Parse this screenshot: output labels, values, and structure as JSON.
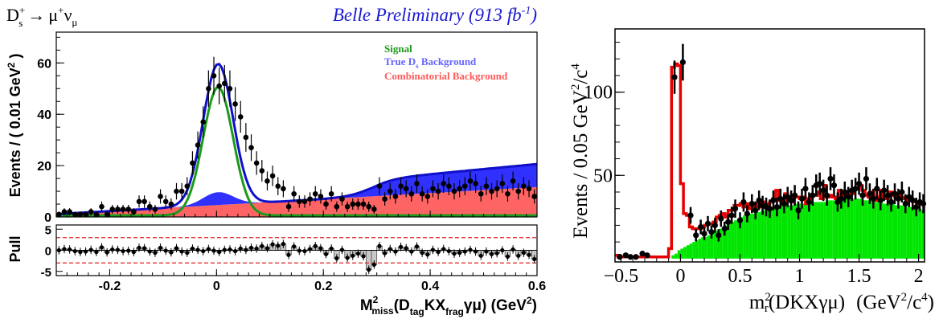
{
  "chart_data": [
    {
      "type": "scatter",
      "panel": "left-fit",
      "decay_label": {
        "base": "D",
        "sup": "+",
        "sub": "s",
        "arrow": "→",
        "mu": "μ",
        "mu_sup": "+",
        "nu": "ν",
        "nu_sub": "μ"
      },
      "experiment_label": "Belle Preliminary (913 fb",
      "experiment_label_sup": "-1",
      "experiment_label_end": ")",
      "ylabel": "Events / ( 0.01 GeV",
      "ylabel_sup": "2",
      "ylabel_end": " )",
      "xlabel": {
        "base": "M",
        "sup": "2",
        "sub": "miss",
        "mid": "(D",
        "tag": "tag",
        "mid2": "KX",
        "frag": "frag",
        "end": "γμ) (GeV",
        "unit_sup": "2",
        "close": ")"
      },
      "xlim": [
        -0.3,
        0.6
      ],
      "ylim": [
        0,
        72
      ],
      "x_ticks": [
        -0.2,
        0,
        0.2,
        0.4,
        0.6
      ],
      "x_tick_labels": [
        "-0.2",
        "0",
        "0.2",
        "0.4",
        "0.6"
      ],
      "y_ticks": [
        0,
        20,
        40,
        60
      ],
      "y_tick_labels": [
        "0",
        "20",
        "40",
        "60"
      ],
      "legend": [
        {
          "name": "Signal",
          "color": "#1a9a1a"
        },
        {
          "name": "True D",
          "sub": "s",
          "rest": " Background",
          "color": "#6464ff"
        },
        {
          "name": "Combinatorial Background",
          "color": "#ff5a5a"
        }
      ],
      "legend_position": "top-right",
      "colors": {
        "signal": "#1a9a1a",
        "true_ds_fill": "#3030ff",
        "comb_fill": "#ff6464",
        "total": "#1010c8",
        "points": "#000000"
      },
      "x": [
        -0.295,
        -0.285,
        -0.275,
        -0.265,
        -0.255,
        -0.245,
        -0.235,
        -0.225,
        -0.215,
        -0.205,
        -0.195,
        -0.185,
        -0.175,
        -0.165,
        -0.155,
        -0.145,
        -0.135,
        -0.125,
        -0.115,
        -0.105,
        -0.095,
        -0.085,
        -0.075,
        -0.065,
        -0.055,
        -0.045,
        -0.035,
        -0.025,
        -0.015,
        -0.005,
        0.005,
        0.015,
        0.025,
        0.035,
        0.045,
        0.055,
        0.065,
        0.075,
        0.085,
        0.095,
        0.105,
        0.115,
        0.125,
        0.135,
        0.145,
        0.155,
        0.165,
        0.175,
        0.185,
        0.195,
        0.205,
        0.215,
        0.225,
        0.235,
        0.245,
        0.255,
        0.265,
        0.275,
        0.285,
        0.295,
        0.305,
        0.315,
        0.325,
        0.335,
        0.345,
        0.355,
        0.365,
        0.375,
        0.385,
        0.395,
        0.405,
        0.415,
        0.425,
        0.435,
        0.445,
        0.455,
        0.465,
        0.475,
        0.485,
        0.495,
        0.505,
        0.515,
        0.525,
        0.535,
        0.545,
        0.555,
        0.565,
        0.575,
        0.585,
        0.595
      ],
      "y": [
        1,
        2,
        2,
        1,
        1,
        1,
        2,
        1,
        4,
        1,
        3,
        3,
        3,
        3,
        2,
        6,
        6,
        4,
        3,
        8,
        6,
        5,
        10,
        10,
        12,
        21,
        28,
        37,
        50,
        55,
        51,
        52,
        50,
        44,
        39,
        31,
        27,
        21,
        18,
        14,
        16,
        12,
        11,
        4,
        9,
        6,
        6,
        7,
        9,
        8,
        5,
        9,
        4,
        7,
        4,
        5,
        5,
        5,
        4,
        3,
        12,
        7,
        10,
        8,
        12,
        11,
        9,
        13,
        9,
        8,
        11,
        10,
        13,
        12,
        10,
        11,
        12,
        14,
        13,
        9,
        12,
        10,
        11,
        13,
        9,
        14,
        10,
        12,
        11,
        8
      ],
      "y_err": [
        1,
        1.4,
        1.4,
        1,
        1,
        1,
        1.4,
        1,
        2,
        1,
        1.7,
        1.7,
        1.7,
        1.7,
        1.4,
        2.4,
        2.4,
        2,
        1.7,
        2.8,
        2.4,
        2.2,
        3.2,
        3.2,
        3.5,
        4.6,
        5.3,
        6.1,
        7.1,
        7.4,
        7.1,
        7.2,
        7.1,
        6.6,
        6.2,
        5.6,
        5.2,
        4.6,
        4.2,
        3.7,
        4,
        3.5,
        3.3,
        2,
        3,
        2.4,
        2.4,
        2.6,
        3,
        2.8,
        2.2,
        3,
        2,
        2.6,
        2,
        2.2,
        2.2,
        2.2,
        2,
        1.7,
        3.5,
        2.6,
        3.2,
        2.8,
        3.5,
        3.3,
        3,
        3.6,
        3,
        2.8,
        3.3,
        3.2,
        3.6,
        3.5,
        3.2,
        3.3,
        3.5,
        3.7,
        3.6,
        3,
        3.5,
        3.2,
        3.3,
        3.6,
        3,
        3.7,
        3.2,
        3.5,
        3.3,
        2.8
      ],
      "pull_panel": {
        "ylabel": "Pull",
        "ylim": [
          -6,
          6
        ],
        "y_ticks": [
          -5,
          0,
          5
        ],
        "y_tick_labels": [
          "-5",
          "0",
          "5"
        ],
        "bands": [
          -3,
          3
        ],
        "values": [
          0,
          0.3,
          0.2,
          -0.2,
          -0.4,
          -0.3,
          0.1,
          -0.4,
          0.7,
          -0.5,
          0.2,
          0.1,
          -0.2,
          -0.1,
          -0.4,
          0.6,
          0.5,
          -0.3,
          -0.6,
          0.6,
          -0.1,
          -0.5,
          0.5,
          -0.3,
          -0.6,
          0.4,
          0.1,
          -0.2,
          0.3,
          -0.1,
          -0.4,
          0.1,
          0.2,
          -0.2,
          0.4,
          0.1,
          0.6,
          0.4,
          1,
          0.5,
          1.4,
          1.1,
          1.5,
          -1.1,
          0.9,
          -0.1,
          -0.2,
          0.3,
          1,
          0.5,
          -0.9,
          0.4,
          -1.9,
          0.1,
          -1.8,
          -1.3,
          -0.8,
          -1.4,
          -4.6,
          -3.4,
          1,
          -0.7,
          0.3,
          -0.3,
          0.8,
          0.5,
          -0.3,
          0.9,
          -0.6,
          -1,
          0.1,
          -0.4,
          0.3,
          -0.2,
          -0.8,
          -0.6,
          -0.3,
          0.1,
          -0.3,
          -1.3,
          -0.3,
          -0.9,
          -0.7,
          0,
          -1.5,
          0.2,
          -1.3,
          -0.6,
          -1.1,
          -2.1
        ]
      }
    },
    {
      "type": "bar",
      "panel": "right-histogram",
      "ylabel": "Events / 0.05 GeV",
      "ylabel_sup": "2",
      "ylabel_end": "/c",
      "ylabel_sup2": "4",
      "xlabel": {
        "base": "m",
        "sup": "2",
        "sub": "r",
        "mid": "(DKXγμ)",
        "unit": "(GeV",
        "unit_sup": "2",
        "unit_mid": "/c",
        "unit_sup2": "4",
        "close": ")"
      },
      "xlim": [
        -0.55,
        2.05
      ],
      "ylim": [
        -2,
        138
      ],
      "x_ticks": [
        -0.5,
        0,
        0.5,
        1,
        1.5,
        2
      ],
      "x_tick_labels": [
        "−0.5",
        "0",
        "0.5",
        "1",
        "1.5",
        "2"
      ],
      "y_ticks": [
        50,
        100
      ],
      "y_tick_labels": [
        "50",
        "100"
      ],
      "colors": {
        "background_fill": "#00e600",
        "total": "#e60000",
        "points": "#000000"
      },
      "bin_width": 0.025,
      "bin_centers": [
        -0.5375,
        -0.5125,
        -0.4875,
        -0.4625,
        -0.4375,
        -0.4125,
        -0.3875,
        -0.3625,
        -0.3375,
        -0.3125,
        -0.2875,
        -0.2625,
        -0.2375,
        -0.2125,
        -0.1875,
        -0.1625,
        -0.1375,
        -0.1125,
        -0.0875,
        -0.0625,
        -0.0375,
        -0.0125,
        0.0125,
        0.0375,
        0.0625,
        0.0875,
        0.1125,
        0.1375,
        0.1625,
        0.1875,
        0.2125,
        0.2375,
        0.2625,
        0.2875,
        0.3125,
        0.3375,
        0.3625,
        0.3875,
        0.4125,
        0.4375,
        0.4625,
        0.4875,
        0.5125,
        0.5375,
        0.5625,
        0.5875,
        0.6125,
        0.6375,
        0.6625,
        0.6875,
        0.7125,
        0.7375,
        0.7625,
        0.7875,
        0.8125,
        0.8375,
        0.8625,
        0.8875,
        0.9125,
        0.9375,
        0.9625,
        0.9875,
        1.0125,
        1.0375,
        1.0625,
        1.0875,
        1.1125,
        1.1375,
        1.1625,
        1.1875,
        1.2125,
        1.2375,
        1.2625,
        1.2875,
        1.3125,
        1.3375,
        1.3625,
        1.3875,
        1.4125,
        1.4375,
        1.4625,
        1.4875,
        1.5125,
        1.5375,
        1.5625,
        1.5875,
        1.6125,
        1.6375,
        1.6625,
        1.6875,
        1.7125,
        1.7375,
        1.7625,
        1.7875,
        1.8125,
        1.8375,
        1.8625,
        1.8875,
        1.9125,
        1.9375,
        1.9625,
        1.9875,
        2.0125,
        2.0375
      ],
      "background": [
        0,
        0,
        0,
        0,
        0,
        0,
        0,
        0,
        0,
        0,
        0,
        0,
        0,
        0,
        0,
        0,
        0,
        0,
        0,
        2,
        3,
        5,
        6,
        7,
        8,
        9,
        10,
        11,
        12,
        13,
        13,
        14,
        15,
        16,
        17,
        18,
        19,
        20,
        21,
        22,
        23,
        24,
        25,
        26,
        26,
        27,
        27,
        28,
        28,
        29,
        29,
        30,
        30,
        31,
        31,
        31,
        32,
        32,
        32,
        32,
        33,
        33,
        33,
        33,
        33,
        34,
        34,
        34,
        34,
        34,
        34,
        35,
        35,
        35,
        35,
        35,
        36,
        36,
        36,
        36,
        36,
        36,
        36,
        35,
        35,
        35,
        35,
        34,
        34,
        34,
        33,
        33,
        33,
        33,
        32,
        32,
        32,
        32,
        31,
        31,
        31,
        30,
        30,
        29
      ],
      "total": [
        2,
        1,
        1,
        1,
        1,
        1,
        1,
        1,
        1,
        1,
        1,
        1,
        1,
        1,
        1,
        1,
        1,
        1,
        6,
        115,
        117,
        116,
        45,
        27,
        26,
        19,
        18,
        18,
        18,
        19,
        20,
        21,
        21,
        22,
        25,
        26,
        27,
        25,
        29,
        29,
        32,
        32,
        33,
        31,
        33,
        30,
        31,
        33,
        31,
        34,
        32,
        33,
        34,
        36,
        41,
        35,
        34,
        39,
        35,
        34,
        37,
        37,
        36,
        37,
        33,
        36,
        38,
        38,
        40,
        36,
        44,
        37,
        38,
        37,
        36,
        41,
        38,
        38,
        40,
        39,
        42,
        42,
        44,
        41,
        38,
        37,
        40,
        35,
        37,
        41,
        37,
        36,
        40,
        38,
        37,
        39,
        36,
        37,
        35,
        36,
        35,
        34,
        33,
        33
      ],
      "points_x": [
        -0.51,
        -0.46,
        -0.42,
        -0.375,
        -0.32,
        -0.28,
        -0.05,
        0.02,
        0.085,
        0.13,
        0.17,
        0.2,
        0.23,
        0.26,
        0.29,
        0.32,
        0.34,
        0.37,
        0.4,
        0.43,
        0.46,
        0.5,
        0.53,
        0.56,
        0.6,
        0.63,
        0.66,
        0.69,
        0.72,
        0.75,
        0.78,
        0.81,
        0.84,
        0.87,
        0.9,
        0.93,
        0.96,
        0.99,
        1.02,
        1.05,
        1.08,
        1.11,
        1.14,
        1.17,
        1.2,
        1.23,
        1.26,
        1.29,
        1.32,
        1.35,
        1.38,
        1.41,
        1.44,
        1.47,
        1.5,
        1.53,
        1.56,
        1.59,
        1.62,
        1.65,
        1.68,
        1.71,
        1.74,
        1.77,
        1.8,
        1.83,
        1.86,
        1.89,
        1.92,
        1.95,
        1.98,
        2.01,
        2.04
      ],
      "points_y": [
        1,
        2,
        1,
        1,
        3,
        2,
        109,
        118,
        26,
        14,
        19,
        15,
        21,
        16,
        20,
        14,
        24,
        18,
        22,
        26,
        30,
        23,
        34,
        27,
        33,
        29,
        35,
        32,
        31,
        30,
        35,
        31,
        36,
        33,
        37,
        35,
        38,
        29,
        36,
        42,
        34,
        38,
        44,
        45,
        41,
        38,
        48,
        44,
        34,
        36,
        40,
        37,
        41,
        42,
        45,
        38,
        48,
        39,
        36,
        42,
        35,
        41,
        38,
        34,
        39,
        36,
        40,
        33,
        37,
        35,
        31,
        34,
        33
      ],
      "points_err": [
        1,
        1.4,
        1,
        1,
        1.7,
        1.4,
        10,
        11,
        5,
        3.7,
        4.4,
        3.9,
        4.6,
        4,
        4.5,
        3.7,
        4.9,
        4.2,
        4.7,
        5.1,
        5.5,
        4.8,
        5.8,
        5.2,
        5.7,
        5.4,
        5.9,
        5.7,
        5.6,
        5.5,
        5.9,
        5.6,
        6,
        5.7,
        6.1,
        5.9,
        6.2,
        5.4,
        6,
        6.5,
        5.8,
        6.2,
        6.6,
        6.7,
        6.4,
        6.2,
        6.9,
        6.6,
        5.8,
        6,
        6.3,
        6.1,
        6.4,
        6.5,
        6.7,
        6.2,
        6.9,
        6.2,
        6,
        6.5,
        5.9,
        6.4,
        6.2,
        5.8,
        6.2,
        6,
        6.3,
        5.7,
        6.1,
        5.9,
        5.6,
        5.8,
        5.7
      ]
    }
  ]
}
